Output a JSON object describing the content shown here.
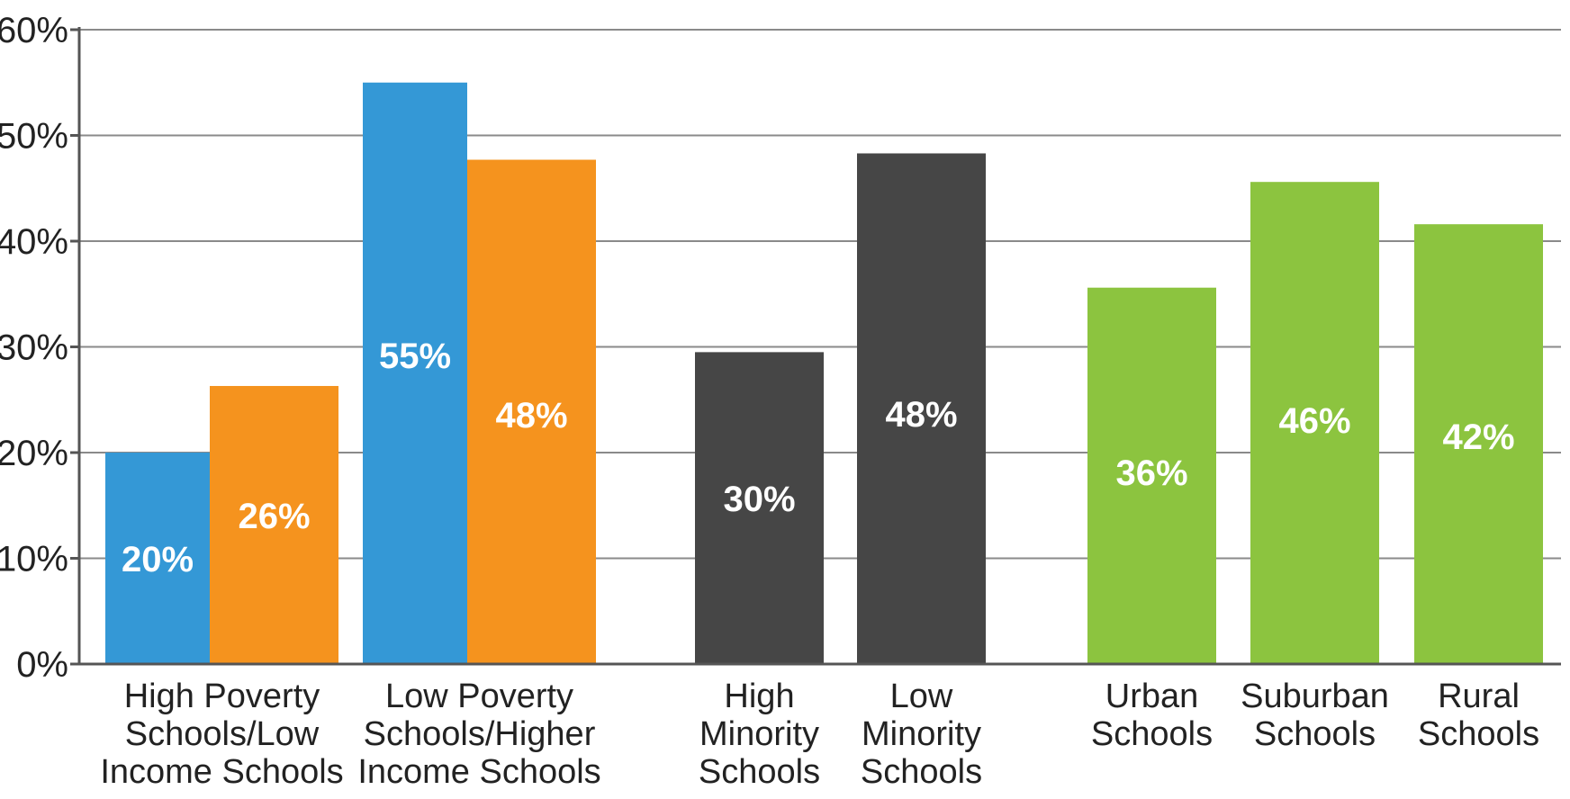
{
  "chart_data": {
    "type": "bar",
    "title": "",
    "xlabel": "",
    "ylabel": "",
    "ylim": [
      0,
      60
    ],
    "y_ticks": [
      {
        "value": 0,
        "label": "0%"
      },
      {
        "value": 10,
        "label": "10%"
      },
      {
        "value": 20,
        "label": "20%"
      },
      {
        "value": 30,
        "label": "30%"
      },
      {
        "value": 40,
        "label": "40%"
      },
      {
        "value": 50,
        "label": "50%"
      },
      {
        "value": 60,
        "label": "60%"
      }
    ],
    "grid": true,
    "legend": "none",
    "groups": [
      {
        "label": [
          "High Poverty",
          "Schools/Low",
          "Income Schools"
        ],
        "bars": [
          {
            "value": 20,
            "label": "20%",
            "color": "#3498d6"
          },
          {
            "value": 26.3,
            "label": "26%",
            "color": "#f5931e"
          }
        ]
      },
      {
        "label": [
          "Low Poverty",
          "Schools/Higher",
          "Income Schools"
        ],
        "bars": [
          {
            "value": 55,
            "label": "55%",
            "color": "#3498d6"
          },
          {
            "value": 47.7,
            "label": "48%",
            "color": "#f5931e"
          }
        ]
      },
      {
        "label": [
          "High",
          "Minority",
          "Schools"
        ],
        "bars": [
          {
            "value": 29.5,
            "label": "30%",
            "color": "#464646"
          }
        ]
      },
      {
        "label": [
          "Low",
          "Minority",
          "Schools"
        ],
        "bars": [
          {
            "value": 48.3,
            "label": "48%",
            "color": "#464646"
          }
        ]
      },
      {
        "label": [
          "Urban",
          "Schools"
        ],
        "bars": [
          {
            "value": 35.6,
            "label": "36%",
            "color": "#8cc43f"
          }
        ]
      },
      {
        "label": [
          "Suburban",
          "Schools"
        ],
        "bars": [
          {
            "value": 45.6,
            "label": "46%",
            "color": "#8cc43f"
          }
        ]
      },
      {
        "label": [
          "Rural",
          "Schools"
        ],
        "bars": [
          {
            "value": 41.6,
            "label": "42%",
            "color": "#8cc43f"
          }
        ]
      }
    ]
  }
}
